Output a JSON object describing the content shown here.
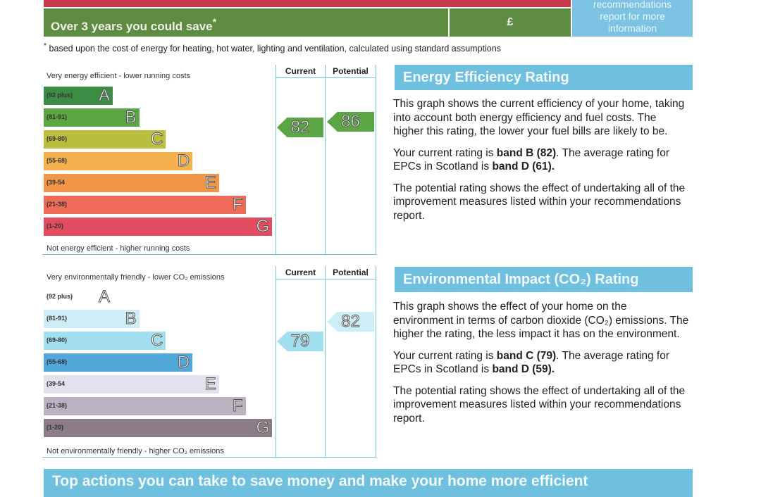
{
  "savings": {
    "label": "Over 3 years you could save",
    "asterisk": "*",
    "amount": "£",
    "side_note": [
      "recommendations",
      "report for more",
      "information"
    ]
  },
  "footnote": {
    "mark": "*",
    "text": "based upon the cost of energy for heating, hot water, lighting and ventilation, calculated using standard assumptions"
  },
  "energy": {
    "top_caption": "Very energy efficient - lower running costs",
    "bottom_caption": "Not energy efficient - higher running costs",
    "col_current": "Current",
    "col_potential": "Potential",
    "bands": [
      {
        "letter": "A",
        "range": "(92 plus)",
        "color": "#3d8c45"
      },
      {
        "letter": "B",
        "range": "(81-91)",
        "color": "#5ba544"
      },
      {
        "letter": "C",
        "range": "(69-80)",
        "color": "#b9bd40"
      },
      {
        "letter": "D",
        "range": "(55-68)",
        "color": "#f5b14d"
      },
      {
        "letter": "E",
        "range": "(39-54",
        "color": "#f29547"
      },
      {
        "letter": "F",
        "range": "(21-38)",
        "color": "#ee6b57"
      },
      {
        "letter": "G",
        "range": "(1-20)",
        "color": "#e34c60"
      }
    ],
    "current": {
      "value": "82",
      "band": 1,
      "color": "#5ba544"
    },
    "potential": {
      "value": "86",
      "band": 1,
      "color": "#5ba544"
    },
    "heading": "Energy Efficiency Rating",
    "p1": "This graph shows the current efficiency of your home, taking into account both energy efficiency and fuel costs. The higher this rating, the lower your fuel bills are likely to be.",
    "p2_a": "Your current rating is ",
    "p2_b": "band B (82)",
    "p2_c": ". The average rating for EPCs in Scotland is ",
    "p2_d": "band D (61).",
    "p3": "The potential rating shows the effect of undertaking all of the improvement measures listed within your recommendations report."
  },
  "environment": {
    "top_caption": "Very environmentally friendly - lower CO₂ emissions",
    "bottom_caption": "Not environmentally friendly - higher CO₂ emissions",
    "col_current": "Current",
    "col_potential": "Potential",
    "bands": [
      {
        "letter": "A",
        "range": "(92 plus)",
        "color": "transparent"
      },
      {
        "letter": "B",
        "range": "(81-91)",
        "color": "#cdeef7"
      },
      {
        "letter": "C",
        "range": "(69-80)",
        "color": "#a2e0f1"
      },
      {
        "letter": "D",
        "range": "(55-68)",
        "color": "#52a8da"
      },
      {
        "letter": "E",
        "range": "(39-54",
        "color": "#e2e2ef"
      },
      {
        "letter": "F",
        "range": "(21-38)",
        "color": "#bab2c1"
      },
      {
        "letter": "G",
        "range": "(1-20)",
        "color": "#8b7c86"
      }
    ],
    "current": {
      "value": "79",
      "band": 2,
      "color": "#a2e0f1"
    },
    "potential": {
      "value": "82",
      "band": 1,
      "color": "#cdeef7"
    },
    "heading": "Environmental Impact (CO₂) Rating",
    "p1": "This graph shows the effect of your home on the environment in terms of carbon dioxide (CO₂) emissions. The higher the rating, the less impact it has on the environment.",
    "p2_a": "Your current rating is ",
    "p2_b": "band C (79)",
    "p2_c": ". The average rating for EPCs in Scotland is ",
    "p2_d": "band D (59).",
    "p3": "The potential rating shows the effect of undertaking all of the improvement measures listed within your recommendations report."
  },
  "banner": "Top actions you can take to save money and make your home more efficient"
}
